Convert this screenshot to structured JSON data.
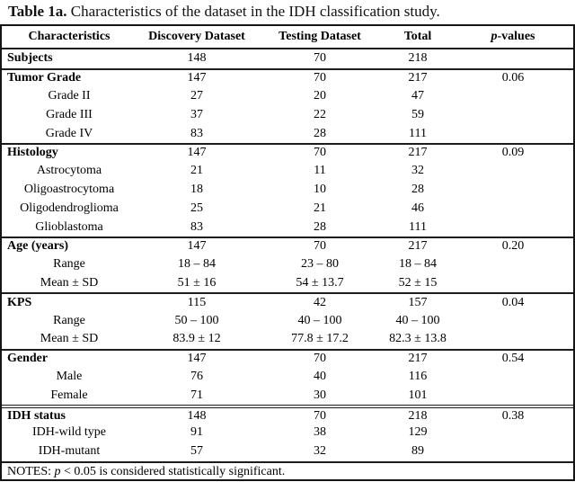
{
  "title": {
    "label": "Table 1a.",
    "text": " Characteristics of the dataset in the IDH classification study."
  },
  "table": {
    "header": {
      "characteristics": "Characteristics",
      "discovery": "Discovery Dataset",
      "testing": "Testing Dataset",
      "total": "Total",
      "p_italic": "p",
      "p_rest": "-values"
    },
    "rows": [
      {
        "label": "Subjects",
        "style": "group",
        "sep": "none",
        "discovery": "148",
        "testing": "70",
        "total": "218",
        "p": ""
      },
      {
        "label": "Tumor Grade",
        "style": "group",
        "sep": "line",
        "discovery": "147",
        "testing": "70",
        "total": "217",
        "p": "0.06"
      },
      {
        "label": "Grade II",
        "style": "sub",
        "sep": "none",
        "discovery": "27",
        "testing": "20",
        "total": "47",
        "p": ""
      },
      {
        "label": "Grade III",
        "style": "sub",
        "sep": "none",
        "discovery": "37",
        "testing": "22",
        "total": "59",
        "p": ""
      },
      {
        "label": "Grade IV",
        "style": "sub",
        "sep": "none",
        "discovery": "83",
        "testing": "28",
        "total": "111",
        "p": ""
      },
      {
        "label": "Histology",
        "style": "group",
        "sep": "line",
        "discovery": "147",
        "testing": "70",
        "total": "217",
        "p": "0.09"
      },
      {
        "label": "Astrocytoma",
        "style": "sub",
        "sep": "none",
        "discovery": "21",
        "testing": "11",
        "total": "32",
        "p": ""
      },
      {
        "label": "Oligoastrocytoma",
        "style": "sub",
        "sep": "none",
        "discovery": "18",
        "testing": "10",
        "total": "28",
        "p": ""
      },
      {
        "label": "Oligodendroglioma",
        "style": "sub",
        "sep": "none",
        "discovery": "25",
        "testing": "21",
        "total": "46",
        "p": ""
      },
      {
        "label": "Glioblastoma",
        "style": "sub",
        "sep": "none",
        "discovery": "83",
        "testing": "28",
        "total": "111",
        "p": ""
      },
      {
        "label": "Age (years)",
        "style": "group",
        "sep": "line",
        "discovery": "147",
        "testing": "70",
        "total": "217",
        "p": "0.20"
      },
      {
        "label": "Range",
        "style": "sub",
        "sep": "none",
        "discovery": "18 – 84",
        "testing": "23 – 80",
        "total": "18 – 84",
        "p": ""
      },
      {
        "label": "Mean ± SD",
        "style": "sub",
        "sep": "none",
        "discovery": "51 ± 16",
        "testing": "54 ± 13.7",
        "total": "52 ± 15",
        "p": ""
      },
      {
        "label": "KPS",
        "style": "group",
        "sep": "line",
        "discovery": "115",
        "testing": "42",
        "total": "157",
        "p": "0.04"
      },
      {
        "label": "Range",
        "style": "sub",
        "sep": "none",
        "discovery": "50 – 100",
        "testing": "40 – 100",
        "total": "40 – 100",
        "p": ""
      },
      {
        "label": "Mean ± SD",
        "style": "sub",
        "sep": "none",
        "discovery": "83.9 ± 12",
        "testing": "77.8 ± 17.2",
        "total": "82.3 ± 13.8",
        "p": ""
      },
      {
        "label": "Gender",
        "style": "group",
        "sep": "line",
        "discovery": "147",
        "testing": "70",
        "total": "217",
        "p": "0.54"
      },
      {
        "label": "Male",
        "style": "sub",
        "sep": "none",
        "discovery": "76",
        "testing": "40",
        "total": "116",
        "p": ""
      },
      {
        "label": "Female",
        "style": "sub",
        "sep": "none",
        "discovery": "71",
        "testing": "30",
        "total": "101",
        "p": ""
      },
      {
        "label": "IDH status",
        "style": "group",
        "sep": "double",
        "discovery": "148",
        "testing": "70",
        "total": "218",
        "p": "0.38"
      },
      {
        "label": "IDH-wild type",
        "style": "sub",
        "sep": "none",
        "discovery": "91",
        "testing": "38",
        "total": "129",
        "p": ""
      },
      {
        "label": "IDH-mutant",
        "style": "sub",
        "sep": "none",
        "discovery": "57",
        "testing": "32",
        "total": "89",
        "p": ""
      }
    ],
    "notes": {
      "prefix": "NOTES: ",
      "p_italic": "p",
      "rest": " < 0.05 is considered statistically significant."
    }
  }
}
